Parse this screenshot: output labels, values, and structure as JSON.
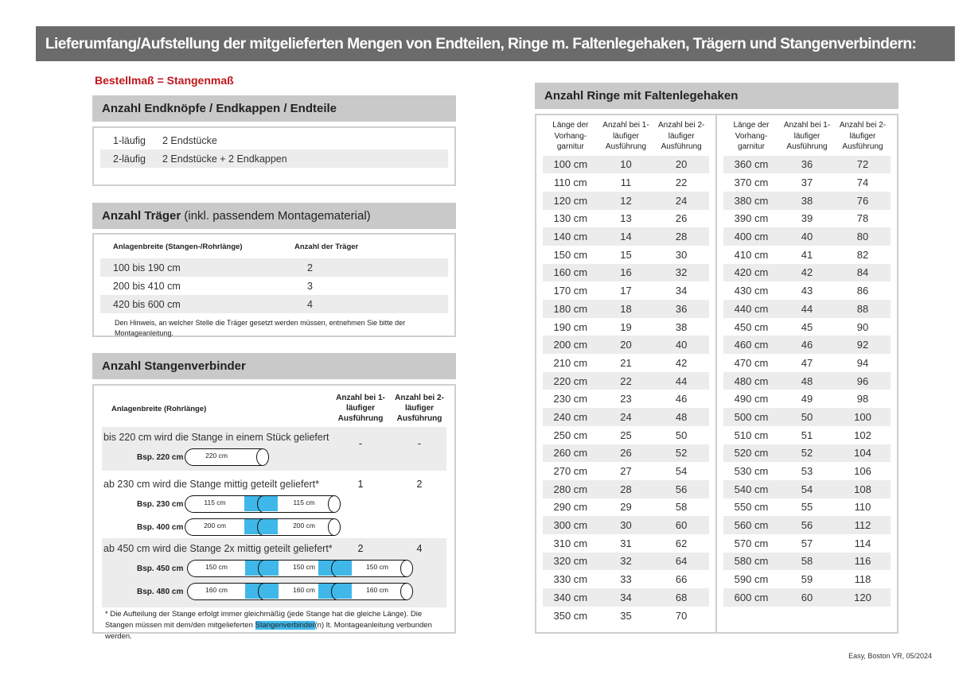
{
  "title": "Lieferumfang/Aufstellung der mitgelieferten Mengen von Endteilen, Ringe m. Faltenlegehaken, Trägern und Stangenverbindern:",
  "order_note": "Bestellmaß = Stangenmaß",
  "endteile": {
    "heading": "Anzahl Endknöpfe / Endkappen / Endteile",
    "rows": [
      {
        "label": "1-läufig",
        "value": "2 Endstücke"
      },
      {
        "label": "2-läufig",
        "value": "2 Endstücke + 2 Endkappen"
      }
    ]
  },
  "traeger": {
    "heading": "Anzahl Träger",
    "heading_suffix": " (inkl. passendem Montagematerial)",
    "col1": "Anlagenbreite (Stangen-/Rohrlänge)",
    "col2": "Anzahl der Träger",
    "rows": [
      {
        "range": "100 bis 190 cm",
        "count": "2"
      },
      {
        "range": "200 bis 410 cm",
        "count": "3"
      },
      {
        "range": "420 bis 600 cm",
        "count": "4"
      }
    ],
    "note": "Den Hinweis, an welcher Stelle die Träger gesetzt werden müssen, entnehmen Sie bitte der Montageanleitung."
  },
  "verbinder": {
    "heading": "Anzahl Stangenverbinder",
    "col1": "Anlagenbreite (Rohrlänge)",
    "col2": "Anzahl bei 1-läufiger Ausführung",
    "col3": "Anzahl bei 2-läufiger Ausführung",
    "groups": [
      {
        "text": "bis 220 cm wird die Stange in einem Stück geliefert",
        "c1": "-",
        "c2": "-",
        "examples": [
          {
            "label": "Bsp. 220 cm",
            "segments": [
              "220 cm"
            ]
          }
        ]
      },
      {
        "text": "ab 230 cm wird die Stange mittig geteilt geliefert*",
        "c1": "1",
        "c2": "2",
        "examples": [
          {
            "label": "Bsp. 230 cm",
            "segments": [
              "115 cm",
              "115 cm"
            ]
          },
          {
            "label": "Bsp. 400 cm",
            "segments": [
              "200 cm",
              "200 cm"
            ]
          }
        ]
      },
      {
        "text": "ab 450 cm wird die Stange 2x mittig geteilt geliefert*",
        "c1": "2",
        "c2": "4",
        "examples": [
          {
            "label": "Bsp. 450 cm",
            "segments": [
              "150 cm",
              "150 cm",
              "150 cm"
            ]
          },
          {
            "label": "Bsp. 480 cm",
            "segments": [
              "160 cm",
              "160 cm",
              "160 cm"
            ]
          }
        ]
      }
    ],
    "footnote_a": "* Die Aufteilung der Stange erfolgt immer gleichmäßig (jede Stange hat die gleiche Länge). Die Stangen müssen mit dem/den mitgelieferten ",
    "footnote_highlight": "Stangenverbinder",
    "footnote_b": "(n) lt. Montageanleitung verbunden werden."
  },
  "ringe": {
    "heading": "Anzahl Ringe mit Faltenlegehaken",
    "col1": "Länge der Vorhang-garnitur",
    "col2": "Anzahl bei 1-läufiger Ausführung",
    "col3": "Anzahl bei 2-läufiger Ausführung",
    "left": [
      [
        "100 cm",
        "10",
        "20"
      ],
      [
        "110 cm",
        "11",
        "22"
      ],
      [
        "120 cm",
        "12",
        "24"
      ],
      [
        "130 cm",
        "13",
        "26"
      ],
      [
        "140 cm",
        "14",
        "28"
      ],
      [
        "150 cm",
        "15",
        "30"
      ],
      [
        "160 cm",
        "16",
        "32"
      ],
      [
        "170 cm",
        "17",
        "34"
      ],
      [
        "180 cm",
        "18",
        "36"
      ],
      [
        "190 cm",
        "19",
        "38"
      ],
      [
        "200 cm",
        "20",
        "40"
      ],
      [
        "210 cm",
        "21",
        "42"
      ],
      [
        "220 cm",
        "22",
        "44"
      ],
      [
        "230 cm",
        "23",
        "46"
      ],
      [
        "240 cm",
        "24",
        "48"
      ],
      [
        "250 cm",
        "25",
        "50"
      ],
      [
        "260 cm",
        "26",
        "52"
      ],
      [
        "270 cm",
        "27",
        "54"
      ],
      [
        "280 cm",
        "28",
        "56"
      ],
      [
        "290 cm",
        "29",
        "58"
      ],
      [
        "300 cm",
        "30",
        "60"
      ],
      [
        "310 cm",
        "31",
        "62"
      ],
      [
        "320 cm",
        "32",
        "64"
      ],
      [
        "330 cm",
        "33",
        "66"
      ],
      [
        "340 cm",
        "34",
        "68"
      ],
      [
        "350 cm",
        "35",
        "70"
      ]
    ],
    "right": [
      [
        "360 cm",
        "36",
        "72"
      ],
      [
        "370 cm",
        "37",
        "74"
      ],
      [
        "380 cm",
        "38",
        "76"
      ],
      [
        "390 cm",
        "39",
        "78"
      ],
      [
        "400 cm",
        "40",
        "80"
      ],
      [
        "410 cm",
        "41",
        "82"
      ],
      [
        "420 cm",
        "42",
        "84"
      ],
      [
        "430 cm",
        "43",
        "86"
      ],
      [
        "440 cm",
        "44",
        "88"
      ],
      [
        "450 cm",
        "45",
        "90"
      ],
      [
        "460 cm",
        "46",
        "92"
      ],
      [
        "470 cm",
        "47",
        "94"
      ],
      [
        "480 cm",
        "48",
        "96"
      ],
      [
        "490 cm",
        "49",
        "98"
      ],
      [
        "500 cm",
        "50",
        "100"
      ],
      [
        "510 cm",
        "51",
        "102"
      ],
      [
        "520 cm",
        "52",
        "104"
      ],
      [
        "530 cm",
        "53",
        "106"
      ],
      [
        "540 cm",
        "54",
        "108"
      ],
      [
        "550 cm",
        "55",
        "110"
      ],
      [
        "560 cm",
        "56",
        "112"
      ],
      [
        "570 cm",
        "57",
        "114"
      ],
      [
        "580 cm",
        "58",
        "116"
      ],
      [
        "590 cm",
        "59",
        "118"
      ],
      [
        "600 cm",
        "60",
        "120"
      ]
    ]
  },
  "footer": "Easy, Boston VR, 05/2024",
  "colors": {
    "title_bg": "#6b6b6b",
    "accent_red": "#c0161c",
    "connector_blue": "#3fb7e8",
    "section_bg": "#c9c9c9"
  }
}
